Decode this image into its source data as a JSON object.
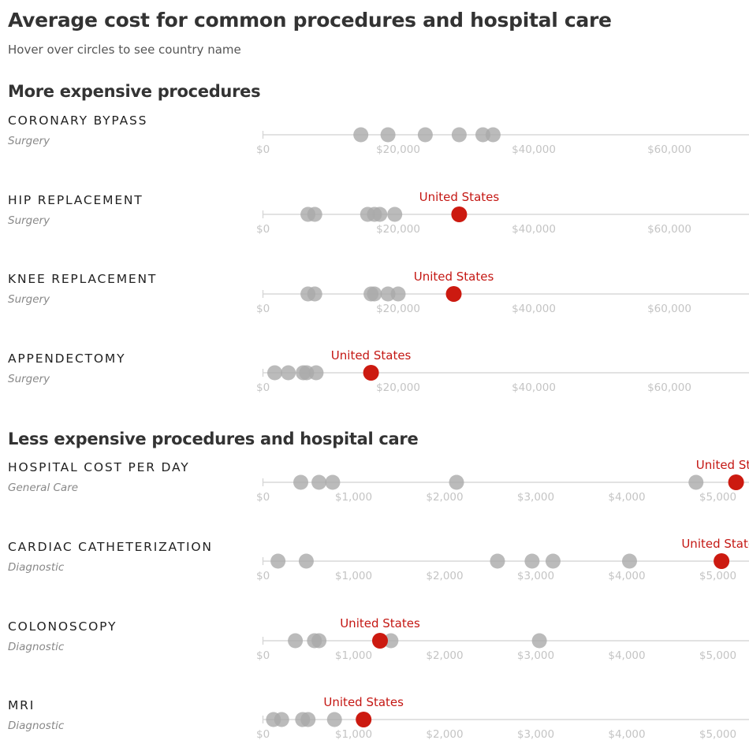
{
  "title": "Average cost for common procedures and hospital care",
  "subtitle": "Hover over circles to see country name",
  "sections": [
    {
      "label": "More expensive procedures"
    },
    {
      "label": "Less expensive procedures and hospital care"
    }
  ],
  "colors": {
    "dot": "#aaaaaa",
    "highlight": "#cc1a10",
    "axis": "#d8d8d8",
    "tick": "#c4c4c4"
  },
  "chart_data": [
    {
      "type": "scatter",
      "title": "CORONARY BYPASS",
      "subtitle": "Surgery",
      "xlim": [
        0,
        72000
      ],
      "ticks": [
        0,
        20000,
        40000,
        60000
      ],
      "tick_labels": [
        "$0",
        "$20,000",
        "$40,000",
        "$60,000"
      ],
      "values": [
        14500,
        18500,
        24000,
        29000,
        32500,
        34000
      ],
      "highlight": null
    },
    {
      "type": "scatter",
      "title": "HIP REPLACEMENT",
      "subtitle": "Surgery",
      "xlim": [
        0,
        72000
      ],
      "ticks": [
        0,
        20000,
        40000,
        60000
      ],
      "tick_labels": [
        "$0",
        "$20,000",
        "$40,000",
        "$60,000"
      ],
      "values": [
        6700,
        7700,
        15500,
        16500,
        17300,
        19500
      ],
      "highlight": {
        "label": "United States",
        "value": 29000
      }
    },
    {
      "type": "scatter",
      "title": "KNEE REPLACEMENT",
      "subtitle": "Surgery",
      "xlim": [
        0,
        72000
      ],
      "ticks": [
        0,
        20000,
        40000,
        60000
      ],
      "tick_labels": [
        "$0",
        "$20,000",
        "$40,000",
        "$60,000"
      ],
      "values": [
        6700,
        7700,
        16000,
        16500,
        18500,
        20000
      ],
      "highlight": {
        "label": "United States",
        "value": 28200
      }
    },
    {
      "type": "scatter",
      "title": "APPENDECTOMY",
      "subtitle": "Surgery",
      "xlim": [
        0,
        72000
      ],
      "ticks": [
        0,
        20000,
        40000,
        60000
      ],
      "tick_labels": [
        "$0",
        "$20,000",
        "$40,000",
        "$60,000"
      ],
      "values": [
        1800,
        3800,
        6000,
        6500,
        7900
      ],
      "highlight": {
        "label": "United States",
        "value": 16000
      }
    },
    {
      "type": "scatter",
      "title": "HOSPITAL COST PER DAY",
      "subtitle": "General Care",
      "xlim": [
        0,
        5500
      ],
      "ticks": [
        0,
        1000,
        2000,
        3000,
        4000,
        5000
      ],
      "tick_labels": [
        "$0",
        "$1,000",
        "$2,000",
        "$3,000",
        "$4,000",
        "$5,000"
      ],
      "values": [
        420,
        620,
        770,
        2130,
        4760
      ],
      "highlight": {
        "label": "United States",
        "value": 5200
      }
    },
    {
      "type": "scatter",
      "title": "CARDIAC CATHETERIZATION",
      "subtitle": "Diagnostic",
      "xlim": [
        0,
        5500
      ],
      "ticks": [
        0,
        1000,
        2000,
        3000,
        4000,
        5000
      ],
      "tick_labels": [
        "$0",
        "$1,000",
        "$2,000",
        "$3,000",
        "$4,000",
        "$5,000"
      ],
      "values": [
        170,
        480,
        2580,
        2960,
        3190,
        4030
      ],
      "highlight": {
        "label": "United States",
        "value": 5040
      }
    },
    {
      "type": "scatter",
      "title": "COLONOSCOPY",
      "subtitle": "Diagnostic",
      "xlim": [
        0,
        5500
      ],
      "ticks": [
        0,
        1000,
        2000,
        3000,
        4000,
        5000
      ],
      "tick_labels": [
        "$0",
        "$1,000",
        "$2,000",
        "$3,000",
        "$4,000",
        "$5,000"
      ],
      "values": [
        360,
        570,
        620,
        1410,
        3040
      ],
      "highlight": {
        "label": "United States",
        "value": 1290
      }
    },
    {
      "type": "scatter",
      "title": "MRI",
      "subtitle": "Diagnostic",
      "xlim": [
        0,
        5500
      ],
      "ticks": [
        0,
        1000,
        2000,
        3000,
        4000,
        5000
      ],
      "tick_labels": [
        "$0",
        "$1,000",
        "$2,000",
        "$3,000",
        "$4,000",
        "$5,000"
      ],
      "values": [
        120,
        210,
        440,
        500,
        790
      ],
      "highlight": {
        "label": "United States",
        "value": 1110
      }
    }
  ]
}
